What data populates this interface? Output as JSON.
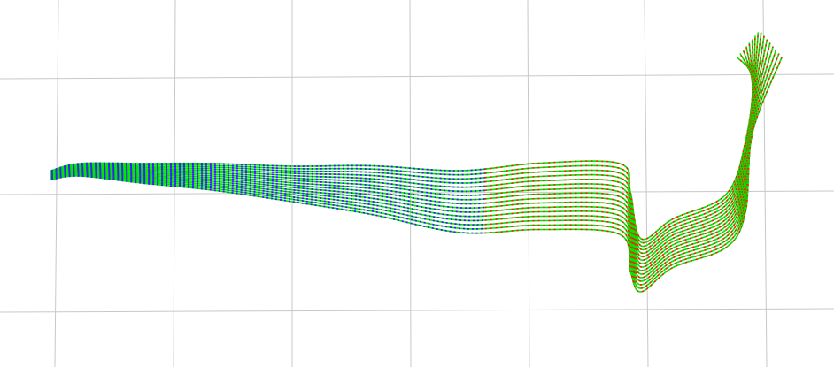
{
  "scene": {
    "background": "#ffffff",
    "grid_color": "#c8c8c8",
    "trajectory_colors": [
      "#00e600",
      "#ff1a00",
      "#3a1aff"
    ],
    "trajectory_count": 16
  }
}
